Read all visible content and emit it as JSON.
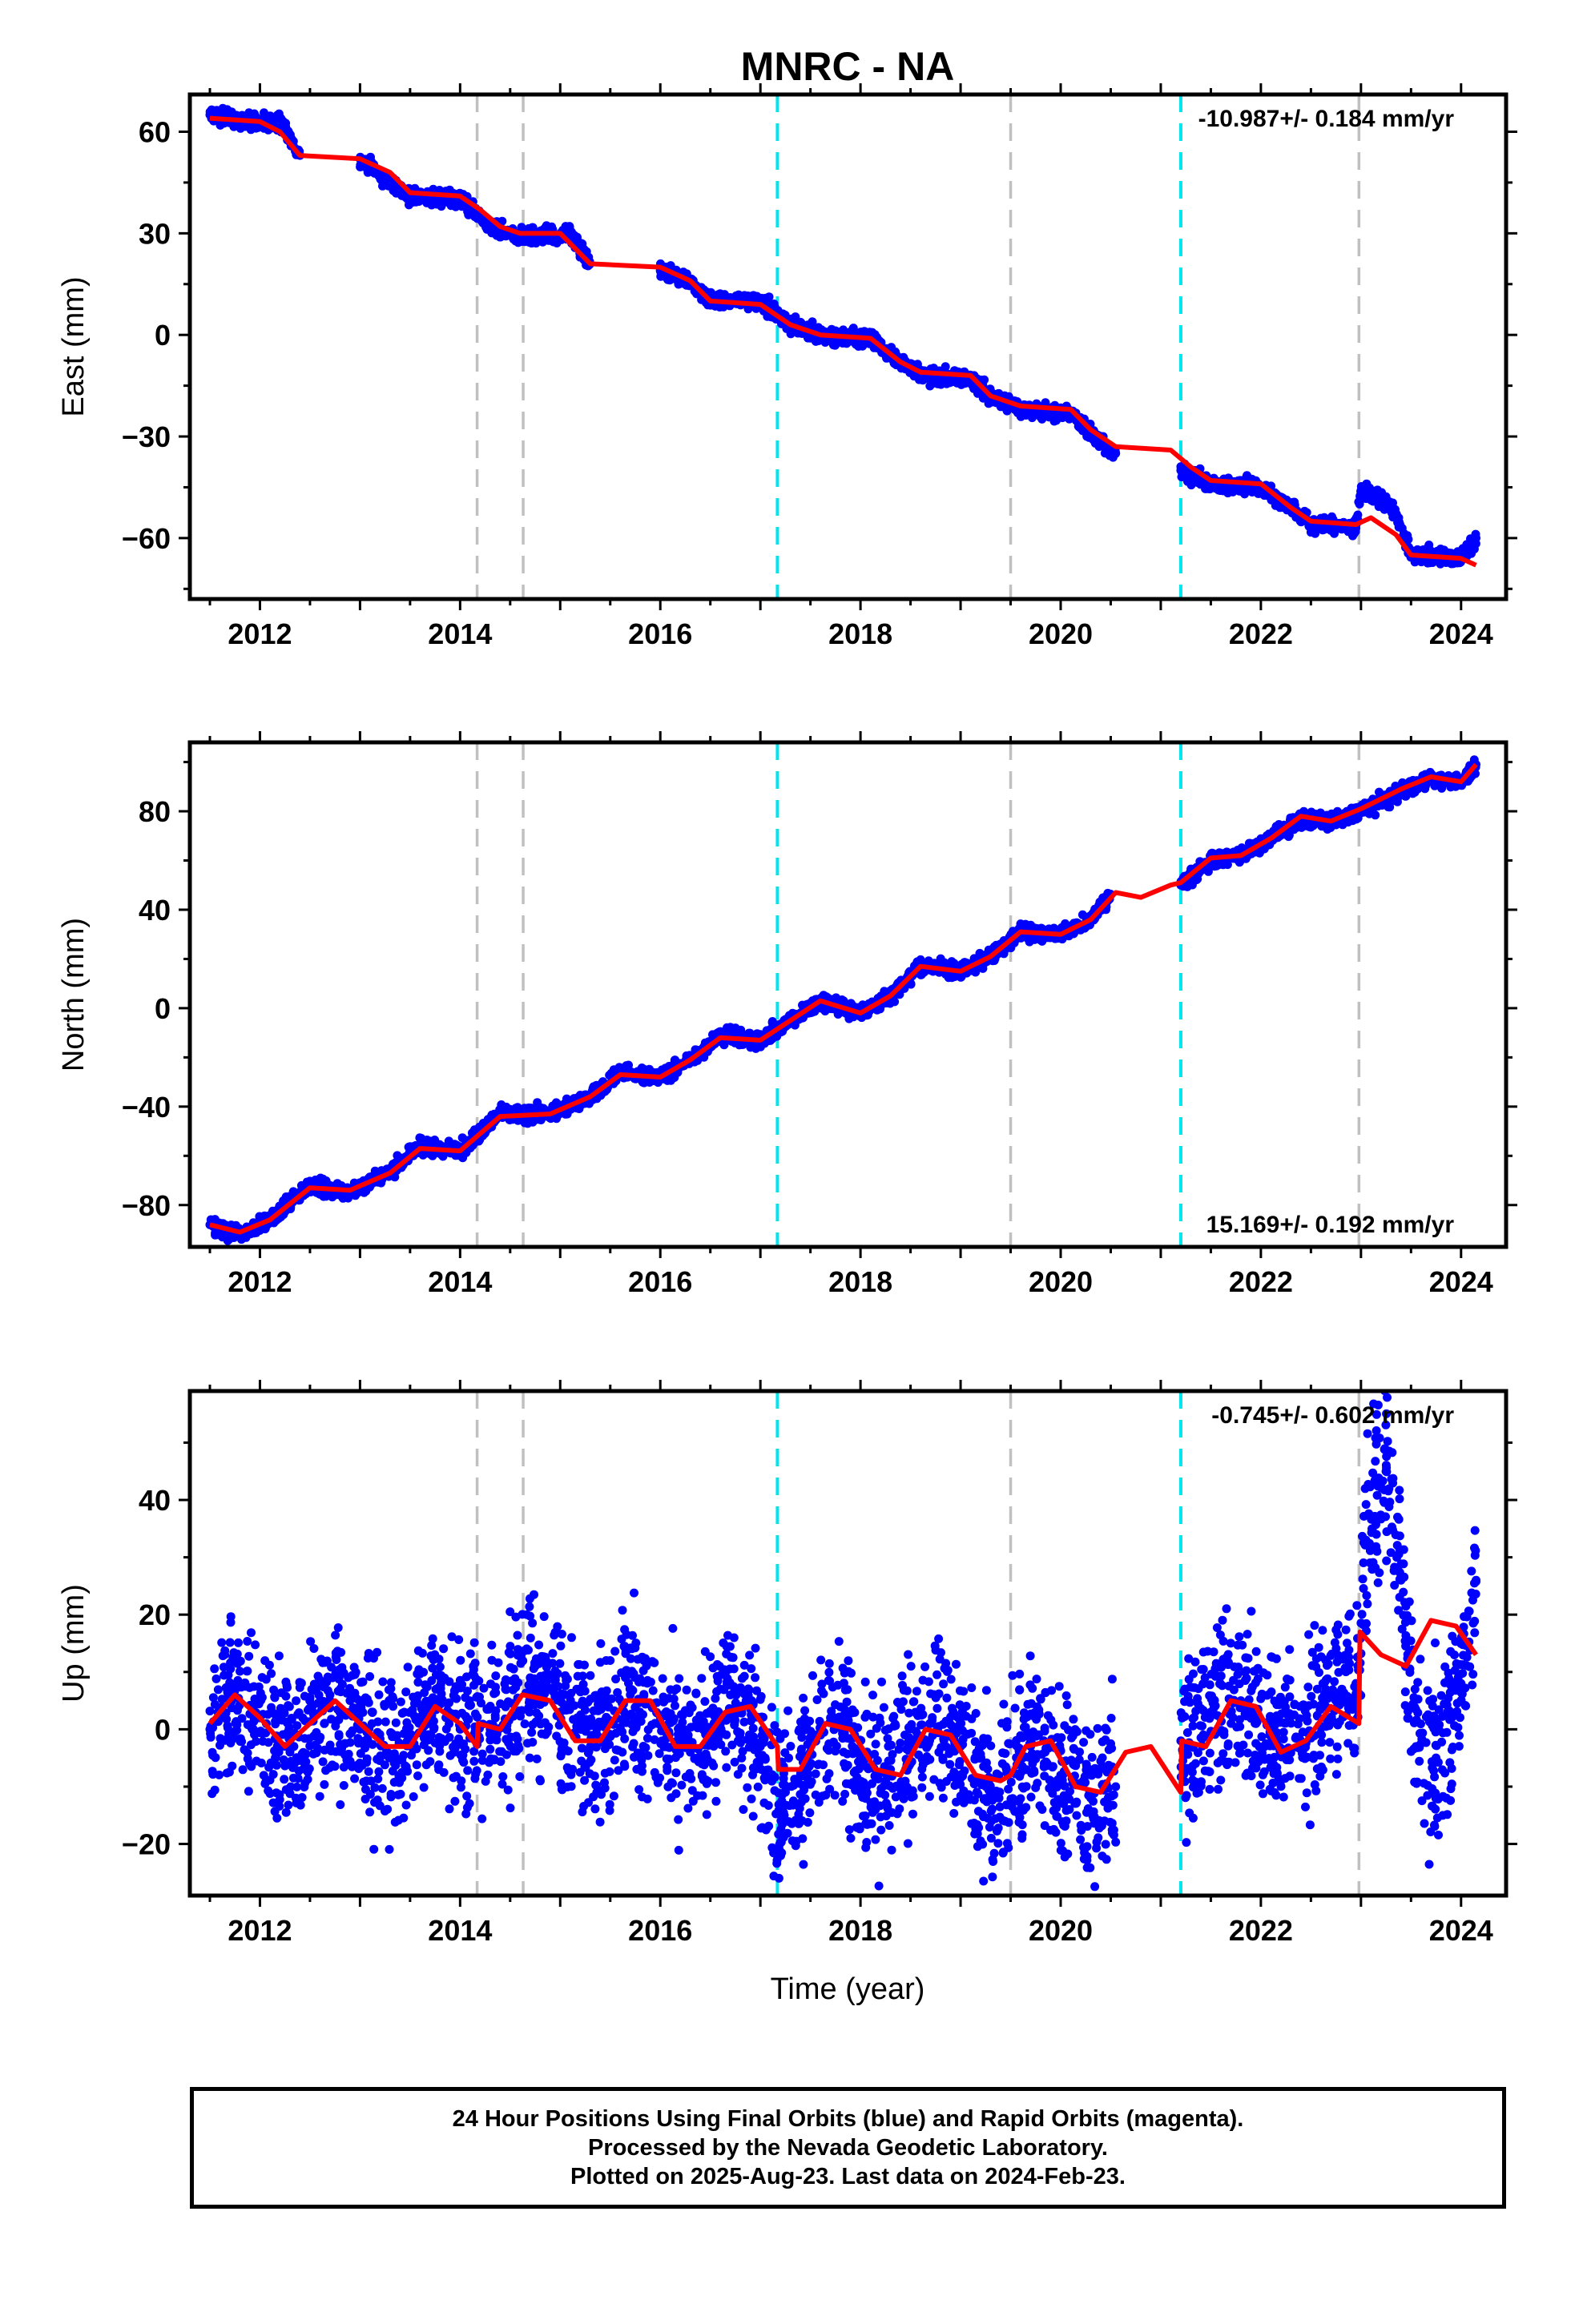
{
  "chart_title": "MNRC - NA",
  "x_axis_label": "Time (year)",
  "caption": {
    "line1": "24 Hour Positions Using Final Orbits (blue) and Rapid Orbits (magenta).",
    "line2": "Processed by the Nevada Geodetic Laboratory.",
    "line3": "Plotted on 2025-Aug-23. Last data on 2024-Feb-23."
  },
  "colors": {
    "data_points": "#0000ff",
    "model_fit": "#ff0000",
    "equipment_change": "#c0c0c0",
    "earthquake": "#00e5ee",
    "frame": "#000000"
  },
  "chart_data": [
    {
      "type": "scatter",
      "ylabel": "East (mm)",
      "xlim": [
        2011.3,
        2024.45
      ],
      "ylim": [
        -78,
        71
      ],
      "yticks": [
        -60,
        -30,
        0,
        30,
        60
      ],
      "xticks": [
        2012,
        2014,
        2016,
        2018,
        2020,
        2022,
        2024
      ],
      "rate_label": "-10.987+/- 0.184 mm/yr",
      "rate_position": "top-right",
      "grid": false,
      "equipment_change_years": [
        2014.17,
        2014.63,
        2019.5,
        2022.98
      ],
      "earthquake_years": [
        2017.17,
        2021.2
      ],
      "series": [
        {
          "name": "data (blue)",
          "style": "points",
          "scatter": 1.6,
          "x": [
            2011.5,
            2011.9,
            2012.2,
            2012.4,
            2013.0,
            2013.3,
            2013.5,
            2014.0,
            2014.3,
            2014.6,
            2015.1,
            2015.3,
            2016.0,
            2016.3,
            2016.5,
            2017.0,
            2017.3,
            2017.6,
            2018.1,
            2018.4,
            2018.6,
            2019.1,
            2019.3,
            2019.6,
            2020.1,
            2020.3,
            2020.55,
            2021.2,
            2021.5,
            2022.0,
            2022.3,
            2022.5,
            2022.95,
            2023.0,
            2023.3,
            2023.5,
            2024.0,
            2024.15
          ],
          "y": [
            65,
            63,
            63,
            53,
            52,
            45,
            41,
            40,
            32,
            29,
            30,
            21,
            19,
            16,
            10,
            10,
            3,
            0,
            -1,
            -8,
            -12,
            -13,
            -18,
            -22,
            -23,
            -29,
            -35,
            -40,
            -44,
            -45,
            -51,
            -56,
            -57,
            -46,
            -50,
            -65,
            -66,
            -60
          ]
        },
        {
          "name": "model fit (red)",
          "style": "line",
          "x": [
            2011.5,
            2012.0,
            2012.2,
            2012.4,
            2013.0,
            2013.3,
            2013.5,
            2014.0,
            2014.2,
            2014.4,
            2014.6,
            2015.0,
            2015.3,
            2016.0,
            2016.3,
            2016.5,
            2017.0,
            2017.3,
            2017.6,
            2018.1,
            2018.4,
            2018.6,
            2019.1,
            2019.3,
            2019.6,
            2020.1,
            2020.3,
            2020.55,
            2021.1,
            2021.3,
            2021.5,
            2022.0,
            2022.3,
            2022.5,
            2022.95,
            2023.1,
            2023.35,
            2023.5,
            2024.0,
            2024.15
          ],
          "y": [
            64,
            63,
            60,
            53,
            52,
            48,
            42,
            41,
            37,
            32,
            30,
            30,
            21,
            20,
            16,
            10,
            9,
            3,
            0,
            -1,
            -8,
            -11,
            -12,
            -18,
            -21,
            -22,
            -28,
            -33,
            -34,
            -39,
            -43,
            -44,
            -51,
            -55,
            -56,
            -54,
            -59,
            -65,
            -66,
            -68
          ]
        }
      ]
    },
    {
      "type": "scatter",
      "ylabel": "North (mm)",
      "xlim": [
        2011.3,
        2024.45
      ],
      "ylim": [
        -97,
        108
      ],
      "yticks": [
        -80,
        -40,
        0,
        40,
        80
      ],
      "xticks": [
        2012,
        2014,
        2016,
        2018,
        2020,
        2022,
        2024
      ],
      "rate_label": "15.169+/- 0.192 mm/yr",
      "rate_position": "bottom-right",
      "grid": false,
      "equipment_change_years": [
        2014.17,
        2014.63,
        2019.5,
        2022.98
      ],
      "earthquake_years": [
        2017.17,
        2021.2
      ],
      "series": [
        {
          "name": "data (blue)",
          "style": "points",
          "scatter": 2.2,
          "x": [
            2011.5,
            2011.8,
            2012.1,
            2012.5,
            2012.9,
            2013.3,
            2013.6,
            2014.0,
            2014.4,
            2014.9,
            2015.3,
            2015.6,
            2016.0,
            2016.3,
            2016.6,
            2017.0,
            2017.3,
            2017.6,
            2018.0,
            2018.3,
            2018.6,
            2019.0,
            2019.3,
            2019.6,
            2020.0,
            2020.3,
            2020.5,
            2021.2,
            2021.5,
            2021.8,
            2022.1,
            2022.4,
            2022.7,
            2023.0,
            2023.4,
            2023.7,
            2024.0,
            2024.15
          ],
          "y": [
            -88,
            -92,
            -86,
            -72,
            -75,
            -66,
            -56,
            -58,
            -43,
            -43,
            -36,
            -26,
            -28,
            -21,
            -11,
            -13,
            -5,
            3,
            -2,
            5,
            17,
            15,
            21,
            31,
            30,
            36,
            46,
            50,
            60,
            62,
            69,
            77,
            76,
            80,
            88,
            93,
            92,
            99
          ]
        },
        {
          "name": "model fit (red)",
          "style": "line",
          "x": [
            2011.5,
            2011.8,
            2012.1,
            2012.5,
            2012.9,
            2013.3,
            2013.6,
            2014.0,
            2014.4,
            2014.9,
            2015.3,
            2015.6,
            2016.0,
            2016.3,
            2016.6,
            2017.0,
            2017.3,
            2017.6,
            2018.0,
            2018.3,
            2018.6,
            2019.0,
            2019.3,
            2019.6,
            2020.0,
            2020.3,
            2020.55,
            2020.8,
            2021.1,
            2021.2,
            2021.5,
            2021.8,
            2022.1,
            2022.4,
            2022.7,
            2023.0,
            2023.4,
            2023.7,
            2024.0,
            2024.15
          ],
          "y": [
            -88,
            -91,
            -86,
            -73,
            -74,
            -67,
            -57,
            -58,
            -44,
            -43,
            -36,
            -27,
            -28,
            -21,
            -12,
            -13,
            -5,
            3,
            -2,
            5,
            17,
            15,
            21,
            31,
            30,
            36,
            47,
            45,
            50,
            51,
            61,
            62,
            69,
            78,
            76,
            81,
            89,
            94,
            92,
            99
          ]
        }
      ]
    },
    {
      "type": "scatter",
      "ylabel": "Up (mm)",
      "xlabel": "Time (year)",
      "xlim": [
        2011.3,
        2024.45
      ],
      "ylim": [
        -29,
        59
      ],
      "yticks": [
        -20,
        0,
        20,
        40
      ],
      "xticks": [
        2012,
        2014,
        2016,
        2018,
        2020,
        2022,
        2024
      ],
      "rate_label": "-0.745+/- 0.602 mm/yr",
      "rate_position": "top-right",
      "grid": false,
      "equipment_change_years": [
        2014.17,
        2014.63,
        2019.5,
        2022.98
      ],
      "earthquake_years": [
        2017.17,
        2021.2
      ],
      "series": [
        {
          "name": "data (blue)",
          "style": "points",
          "scatter": 10,
          "x": [
            2011.5,
            2011.7,
            2012.0,
            2012.3,
            2012.7,
            2013.0,
            2013.3,
            2013.7,
            2014.0,
            2014.3,
            2014.7,
            2015.0,
            2015.3,
            2015.7,
            2016.0,
            2016.3,
            2016.7,
            2017.0,
            2017.2,
            2017.4,
            2017.7,
            2018.0,
            2018.3,
            2018.7,
            2019.0,
            2019.3,
            2019.7,
            2020.0,
            2020.3,
            2020.55,
            2021.2,
            2021.5,
            2021.8,
            2022.1,
            2022.4,
            2022.7,
            2022.95,
            2023.05,
            2023.25,
            2023.4,
            2023.55,
            2023.75,
            2024.0,
            2024.15
          ],
          "y": [
            0,
            5,
            2,
            -4,
            6,
            0,
            -5,
            5,
            0,
            0,
            9,
            3,
            -3,
            6,
            1,
            -4,
            6,
            -3,
            -14,
            -8,
            2,
            -5,
            -7,
            1,
            -3,
            -12,
            -3,
            -8,
            -12,
            -10,
            -2,
            3,
            5,
            0,
            -2,
            6,
            8,
            33,
            45,
            26,
            -3,
            -5,
            8,
            26
          ]
        },
        {
          "name": "model fit (red)",
          "style": "line",
          "x": [
            2011.5,
            2011.75,
            2012.0,
            2012.25,
            2012.5,
            2012.75,
            2013.0,
            2013.25,
            2013.5,
            2013.75,
            2014.0,
            2014.17,
            2014.18,
            2014.4,
            2014.62,
            2014.63,
            2014.9,
            2015.15,
            2015.4,
            2015.65,
            2015.9,
            2016.15,
            2016.4,
            2016.65,
            2016.9,
            2017.17,
            2017.18,
            2017.4,
            2017.65,
            2017.9,
            2018.15,
            2018.4,
            2018.65,
            2018.9,
            2019.15,
            2019.4,
            2019.5,
            2019.65,
            2019.9,
            2020.15,
            2020.4,
            2020.65,
            2020.9,
            2021.2,
            2021.21,
            2021.45,
            2021.7,
            2021.95,
            2022.2,
            2022.45,
            2022.7,
            2022.98,
            2022.99,
            2023.2,
            2023.45,
            2023.7,
            2023.95,
            2024.15
          ],
          "y": [
            1,
            6,
            2,
            -3,
            1,
            5,
            1,
            -3,
            -3,
            4,
            1,
            -3,
            1,
            0,
            6,
            6,
            5,
            -2,
            -2,
            5,
            5,
            -3,
            -3,
            3,
            4,
            -3,
            -7,
            -7,
            1,
            0,
            -7,
            -8,
            0,
            -1,
            -8,
            -9,
            -8,
            -3,
            -2,
            -10,
            -11,
            -4,
            -3,
            -11,
            -2,
            -3,
            5,
            4,
            -4,
            -2,
            4,
            1,
            17,
            13,
            11,
            19,
            18,
            13
          ]
        }
      ]
    }
  ]
}
